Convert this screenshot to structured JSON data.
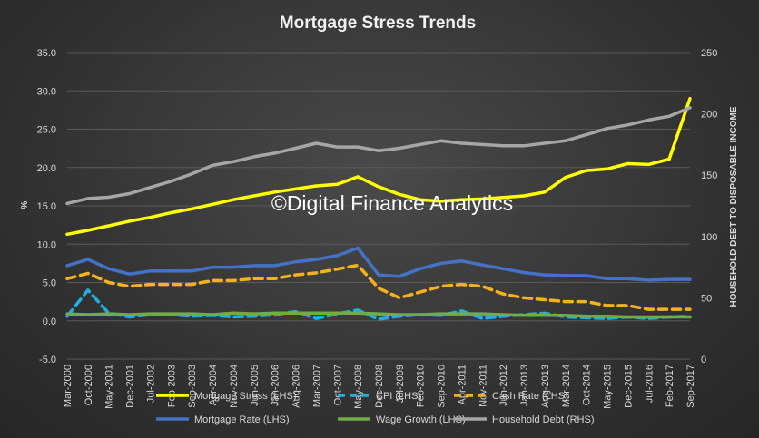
{
  "chart_data": {
    "type": "line",
    "title": "Mortgage Stress Trends",
    "watermark": "©Digital Finance Analytics",
    "ylabel_left": "%",
    "ylabel_right": "HOUSEHOLD DEBT TO DISPOSABLE INCOME",
    "ylim_left": [
      -5,
      35
    ],
    "ylim_right": [
      0,
      250
    ],
    "yticks_left": [
      "-5.0",
      "0.0",
      "5.0",
      "10.0",
      "15.0",
      "20.0",
      "25.0",
      "30.0",
      "35.0"
    ],
    "yticks_right": [
      "0",
      "50",
      "100",
      "150",
      "200",
      "250"
    ],
    "grid": "horizontal",
    "legend_position": "bottom",
    "x_tick_labels": [
      "Mar-2000",
      "Oct-2000",
      "May-2001",
      "Dec-2001",
      "Jul-2002",
      "Feb-2003",
      "Sep-2003",
      "Apr-2004",
      "Nov-2004",
      "Jun-2005",
      "Jan-2006",
      "Aug-2006",
      "Mar-2007",
      "Oct-2007",
      "May-2008",
      "Dec-2008",
      "Jul-2009",
      "Feb-2010",
      "Sep-2010",
      "Apr-2011",
      "Nov-2011",
      "Jun-2012",
      "Jan-2013",
      "Aug-2013",
      "Mar-2014",
      "Oct-2014",
      "May-2015",
      "Dec-2015",
      "Jul-2016",
      "Feb-2017",
      "Sep-2017"
    ],
    "series": [
      {
        "name": "Mortgage Stress (LHS)",
        "axis": "left",
        "color": "#ffff00",
        "dash": "solid",
        "values": [
          11.3,
          11.8,
          12.4,
          13.0,
          13.5,
          14.1,
          14.6,
          15.2,
          15.8,
          16.3,
          16.8,
          17.2,
          17.6,
          17.8,
          18.8,
          17.5,
          16.5,
          15.8,
          15.6,
          15.8,
          15.9,
          16.1,
          16.3,
          16.8,
          18.7,
          19.6,
          19.8,
          20.5,
          20.4,
          21.1,
          29.0
        ]
      },
      {
        "name": "CPI (LHS)",
        "axis": "left",
        "color": "#1fb0e0",
        "dash": "dashed",
        "values": [
          0.6,
          4.0,
          1.0,
          0.5,
          0.8,
          0.8,
          0.6,
          0.7,
          0.5,
          0.6,
          0.8,
          1.2,
          0.3,
          0.9,
          1.4,
          0.2,
          0.6,
          0.8,
          0.7,
          1.3,
          0.3,
          0.6,
          0.8,
          1.0,
          0.5,
          0.4,
          0.3,
          0.5,
          0.3,
          0.5,
          0.6
        ]
      },
      {
        "name": "Cash Rate (LHS)",
        "axis": "left",
        "color": "#f5b21b",
        "dash": "dashed",
        "values": [
          5.5,
          6.2,
          5.0,
          4.5,
          4.75,
          4.75,
          4.75,
          5.25,
          5.25,
          5.5,
          5.5,
          6.0,
          6.25,
          6.75,
          7.25,
          4.25,
          3.0,
          3.75,
          4.5,
          4.75,
          4.5,
          3.5,
          3.0,
          2.75,
          2.5,
          2.5,
          2.0,
          2.0,
          1.5,
          1.5,
          1.5
        ]
      },
      {
        "name": "Mortgage Rate (LHS)",
        "axis": "left",
        "color": "#4472c4",
        "dash": "solid",
        "values": [
          7.2,
          8.0,
          6.8,
          6.1,
          6.5,
          6.5,
          6.5,
          7.0,
          7.0,
          7.2,
          7.2,
          7.7,
          8.0,
          8.5,
          9.5,
          6.0,
          5.8,
          6.8,
          7.5,
          7.8,
          7.3,
          6.8,
          6.3,
          6.0,
          5.9,
          5.9,
          5.5,
          5.5,
          5.3,
          5.4,
          5.4
        ]
      },
      {
        "name": "Wage Growth (LHS)",
        "axis": "left",
        "color": "#70ad47",
        "dash": "solid",
        "values": [
          0.9,
          0.8,
          0.9,
          0.8,
          0.9,
          0.9,
          0.9,
          0.8,
          1.0,
          0.9,
          1.0,
          1.0,
          1.0,
          1.0,
          1.0,
          0.9,
          0.8,
          0.8,
          0.9,
          0.9,
          0.9,
          0.8,
          0.7,
          0.7,
          0.7,
          0.6,
          0.6,
          0.5,
          0.5,
          0.5,
          0.5
        ]
      },
      {
        "name": "Household Debt (RHS)",
        "axis": "right",
        "color": "#a6a6a6",
        "dash": "solid",
        "values": [
          127,
          131,
          132,
          135,
          140,
          145,
          151,
          158,
          161,
          165,
          168,
          172,
          176,
          173,
          173,
          170,
          172,
          175,
          178,
          176,
          175,
          174,
          174,
          176,
          178,
          183,
          188,
          191,
          195,
          198,
          205
        ]
      }
    ]
  },
  "legend": [
    {
      "label": "Mortgage Stress (LHS)",
      "color": "#ffff00",
      "dash": "solid"
    },
    {
      "label": "CPI (LHS)",
      "color": "#1fb0e0",
      "dash": "dashed"
    },
    {
      "label": "Cash Rate (LHS)",
      "color": "#f5b21b",
      "dash": "dashed"
    },
    {
      "label": "Mortgage Rate (LHS)",
      "color": "#4472c4",
      "dash": "solid"
    },
    {
      "label": "Wage Growth (LHS)",
      "color": "#70ad47",
      "dash": "solid"
    },
    {
      "label": "Household Debt (RHS)",
      "color": "#a6a6a6",
      "dash": "solid"
    }
  ]
}
